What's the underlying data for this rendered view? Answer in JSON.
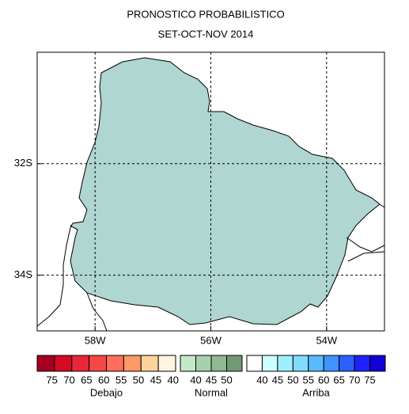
{
  "title": [
    "PRONOSTICO PROBABILISTICO",
    "SET-OCT-NOV 2014"
  ],
  "map": {
    "xlim": [
      -59,
      -53
    ],
    "ylim": [
      -35,
      -30
    ],
    "xticks": [
      {
        "value": -58,
        "label": "58W"
      },
      {
        "value": -56,
        "label": "56W"
      },
      {
        "value": -54,
        "label": "54W"
      }
    ],
    "yticks": [
      {
        "value": -32,
        "label": "32S"
      },
      {
        "value": -34,
        "label": "34S"
      }
    ],
    "fill": "#afd6d1",
    "grid": true
  },
  "legend": [
    {
      "label": "Debajo",
      "colors": [
        "#a50021",
        "#d60a24",
        "#e8273a",
        "#f44848",
        "#ff6e5c",
        "#ff9966",
        "#ffd49c",
        "#fff5e0"
      ],
      "ticks": [
        "75",
        "70",
        "65",
        "60",
        "55",
        "50",
        "45",
        "40"
      ]
    },
    {
      "label": "Normal",
      "colors": [
        "#c5e8c9",
        "#a7d1ac",
        "#8fb893",
        "#709a74"
      ],
      "ticks": [
        "40",
        "45",
        "50"
      ]
    },
    {
      "label": "Arriba",
      "colors": [
        "#ffffff",
        "#ccffff",
        "#a0efff",
        "#7fdcff",
        "#5abaff",
        "#3f93ff",
        "#2e5fff",
        "#1f22ff",
        "#1200d4"
      ],
      "ticks": [
        "40",
        "45",
        "50",
        "55",
        "60",
        "65",
        "70",
        "75"
      ]
    }
  ]
}
